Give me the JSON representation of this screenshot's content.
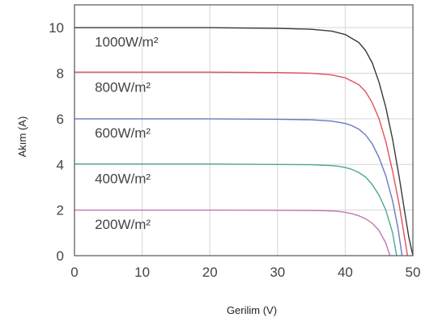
{
  "chart_data": {
    "type": "line",
    "title": "",
    "xlabel": "Gerilim (V)",
    "ylabel": "Akım (A)",
    "xlim": [
      0,
      50
    ],
    "ylim": [
      0,
      11
    ],
    "xticks": [
      0,
      10,
      20,
      30,
      40,
      50
    ],
    "yticks": [
      0,
      2,
      4,
      6,
      8,
      10
    ],
    "grid": true,
    "series": [
      {
        "name": "1000W/m²",
        "color": "#3a3a3a",
        "x": [
          0,
          10,
          20,
          30,
          35,
          38,
          40,
          42,
          43,
          44,
          45,
          46,
          47,
          48,
          48.8,
          49.4,
          50
        ],
        "y": [
          10.0,
          10.0,
          10.0,
          9.97,
          9.93,
          9.85,
          9.7,
          9.35,
          9.0,
          8.45,
          7.6,
          6.5,
          5.1,
          3.4,
          1.9,
          0.8,
          0
        ]
      },
      {
        "name": "800W/m²",
        "color": "#e0525a",
        "x": [
          0,
          10,
          20,
          30,
          35,
          38,
          40,
          42,
          43,
          44,
          45,
          46,
          47,
          48,
          48.6,
          49.2
        ],
        "y": [
          8.05,
          8.05,
          8.05,
          8.03,
          8.0,
          7.93,
          7.8,
          7.5,
          7.2,
          6.7,
          6.0,
          5.0,
          3.7,
          2.2,
          1.1,
          0
        ]
      },
      {
        "name": "600W/m²",
        "color": "#6a7bbd",
        "x": [
          0,
          10,
          20,
          30,
          35,
          38,
          40,
          41,
          42,
          43,
          44,
          45,
          46,
          47,
          47.8,
          48.4
        ],
        "y": [
          6.0,
          6.0,
          6.0,
          5.98,
          5.96,
          5.9,
          5.8,
          5.7,
          5.55,
          5.3,
          4.9,
          4.3,
          3.5,
          2.4,
          1.2,
          0
        ]
      },
      {
        "name": "400W/m²",
        "color": "#4aa89a",
        "x": [
          0,
          10,
          20,
          30,
          35,
          38,
          39,
          40,
          41,
          42,
          43,
          44,
          45,
          46,
          47,
          47.6
        ],
        "y": [
          4.02,
          4.02,
          4.02,
          4.0,
          3.99,
          3.95,
          3.92,
          3.87,
          3.78,
          3.65,
          3.45,
          3.12,
          2.65,
          2.0,
          1.0,
          0
        ]
      },
      {
        "name": "200W/m²",
        "color": "#c07ab0",
        "x": [
          0,
          10,
          20,
          30,
          35,
          37,
          38,
          39,
          40,
          41,
          42,
          43,
          44,
          45,
          46,
          46.6
        ],
        "y": [
          2.0,
          2.0,
          2.0,
          1.99,
          1.98,
          1.97,
          1.96,
          1.94,
          1.9,
          1.84,
          1.75,
          1.62,
          1.42,
          1.1,
          0.55,
          0
        ]
      }
    ],
    "labels": [
      {
        "text": "1000W/m²",
        "x": 3,
        "y": 9.25
      },
      {
        "text": "800W/m²",
        "x": 3,
        "y": 7.25
      },
      {
        "text": "600W/m²",
        "x": 3,
        "y": 5.25
      },
      {
        "text": "400W/m²",
        "x": 3,
        "y": 3.25
      },
      {
        "text": "200W/m²",
        "x": 3,
        "y": 1.25
      }
    ]
  }
}
